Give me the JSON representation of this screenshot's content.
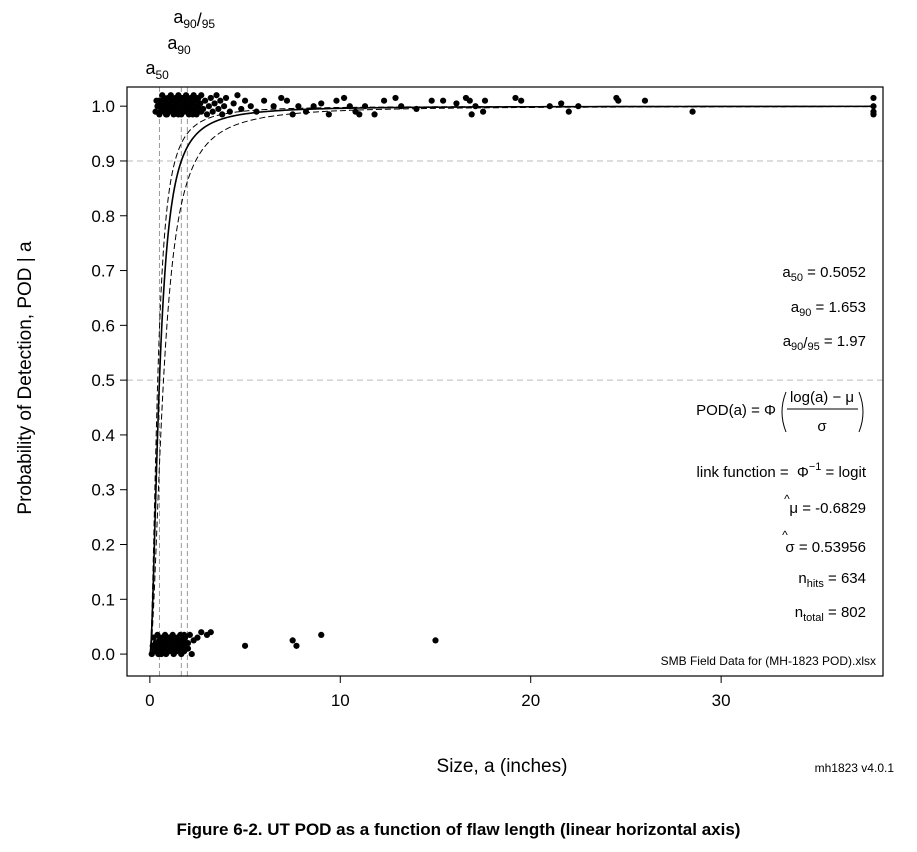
{
  "caption": "Figure 6-2. UT POD as a function of flaw length (linear horizontal axis)",
  "chart_data": {
    "type": "scatter",
    "xlabel": "Size, a  (inches)",
    "ylabel": "Probability of Detection, POD | a",
    "xlim": [
      -1.2,
      38.5
    ],
    "ylim": [
      -0.04,
      1.035
    ],
    "x_ticks": [
      0,
      10,
      20,
      30
    ],
    "y_ticks": [
      0.0,
      0.1,
      0.2,
      0.3,
      0.4,
      0.5,
      0.6,
      0.7,
      0.8,
      0.9,
      1.0
    ],
    "y_tick_labels": [
      "0.0",
      "0.1",
      "0.2",
      "0.3",
      "0.4",
      "0.5",
      "0.6",
      "0.7",
      "0.8",
      "0.9",
      "1.0"
    ],
    "x_tick_labels": [
      "0",
      "10",
      "20",
      "30"
    ],
    "grid": false,
    "reference_lines": {
      "horizontal": [
        0.5,
        0.9
      ]
    },
    "reference_markers": [
      {
        "base": "a",
        "sub": "50",
        "x": 0.5052
      },
      {
        "base": "a",
        "sub": "90",
        "x": 1.653
      },
      {
        "base": "a",
        "sub": "90",
        "mid": "/",
        "sub2": "95",
        "x": 1.97
      }
    ],
    "model": {
      "mu": -0.6829,
      "sigma": 0.53956
    },
    "stats": [
      {
        "base": "a",
        "sub": "50",
        "rest": " = 0.5052"
      },
      {
        "base": "a",
        "sub": "90",
        "rest": " = 1.653"
      },
      {
        "base": "a",
        "sub": "90",
        "mid": "/",
        "sub2": "95",
        "rest": " = 1.97"
      }
    ],
    "formula": {
      "lhs": "POD(a) = Φ",
      "numerator": "log(a) − μ",
      "denominator": "σ"
    },
    "link_function": {
      "label": "link function = ",
      "phi": "Φ",
      "sup": "−1",
      "rest": " = logit"
    },
    "estimates": [
      {
        "symbol": "μ",
        "hat": "^",
        "rest": " = -0.6829"
      },
      {
        "symbol": "σ",
        "hat": "^",
        "rest": " = 0.53956"
      }
    ],
    "counts": [
      {
        "base": "n",
        "sub": "hits",
        "rest": " = 634"
      },
      {
        "base": "n",
        "sub": "total",
        "rest": " = 802"
      }
    ],
    "data_source": "SMB Field Data for (MH-1823 POD).xlsx",
    "version": "mh1823 v4.0.1",
    "hits": [
      [
        0.3,
        0.99
      ],
      [
        0.4,
        1.0
      ],
      [
        0.5,
        1.01
      ],
      [
        0.55,
        0.99
      ],
      [
        0.6,
        1.0
      ],
      [
        0.65,
        1.02
      ],
      [
        0.7,
        0.995
      ],
      [
        0.75,
        1.005
      ],
      [
        0.8,
        1.01
      ],
      [
        0.85,
        0.985
      ],
      [
        0.9,
        1.0
      ],
      [
        0.95,
        1.015
      ],
      [
        1.0,
        0.99
      ],
      [
        1.05,
        1.005
      ],
      [
        1.1,
        1.02
      ],
      [
        1.15,
        0.995
      ],
      [
        1.2,
        1.01
      ],
      [
        1.25,
        0.985
      ],
      [
        1.3,
        1.0
      ],
      [
        1.35,
        1.015
      ],
      [
        1.4,
        0.99
      ],
      [
        1.45,
        1.005
      ],
      [
        1.5,
        1.02
      ],
      [
        1.55,
        0.995
      ],
      [
        1.6,
        1.01
      ],
      [
        1.65,
        0.985
      ],
      [
        1.7,
        1.0
      ],
      [
        1.75,
        1.015
      ],
      [
        1.8,
        0.99
      ],
      [
        1.85,
        1.005
      ],
      [
        1.9,
        1.02
      ],
      [
        1.95,
        0.995
      ],
      [
        2.0,
        1.01
      ],
      [
        2.05,
        0.985
      ],
      [
        2.1,
        1.0
      ],
      [
        2.15,
        1.015
      ],
      [
        2.2,
        0.99
      ],
      [
        2.25,
        1.005
      ],
      [
        2.3,
        1.02
      ],
      [
        2.35,
        0.995
      ],
      [
        2.4,
        1.01
      ],
      [
        2.45,
        0.985
      ],
      [
        2.5,
        1.0
      ],
      [
        2.55,
        1.015
      ],
      [
        2.6,
        0.99
      ],
      [
        2.65,
        1.005
      ],
      [
        2.7,
        1.02
      ],
      [
        2.8,
        0.995
      ],
      [
        2.9,
        1.01
      ],
      [
        3.0,
        0.985
      ],
      [
        3.1,
        1.0
      ],
      [
        3.2,
        1.015
      ],
      [
        3.3,
        0.99
      ],
      [
        3.4,
        1.005
      ],
      [
        3.5,
        1.02
      ],
      [
        3.6,
        0.995
      ],
      [
        3.7,
        1.01
      ],
      [
        3.8,
        0.985
      ],
      [
        3.9,
        1.0
      ],
      [
        4.0,
        1.015
      ],
      [
        4.2,
        0.99
      ],
      [
        4.4,
        1.005
      ],
      [
        4.6,
        1.02
      ],
      [
        4.8,
        0.995
      ],
      [
        5.0,
        1.01
      ],
      [
        5.3,
        1.0
      ],
      [
        5.6,
        0.99
      ],
      [
        6.0,
        1.01
      ],
      [
        6.5,
        1.0
      ],
      [
        6.9,
        1.015
      ],
      [
        7.2,
        1.01
      ],
      [
        7.5,
        0.985
      ],
      [
        7.8,
        1.0
      ],
      [
        8.2,
        0.99
      ],
      [
        8.6,
        1.0
      ],
      [
        9.0,
        1.005
      ],
      [
        9.4,
        0.985
      ],
      [
        9.8,
        1.01
      ],
      [
        10.2,
        1.015
      ],
      [
        10.5,
        1.0
      ],
      [
        10.8,
        0.99
      ],
      [
        11.0,
        0.985
      ],
      [
        11.3,
        1.0
      ],
      [
        11.8,
        0.985
      ],
      [
        12.3,
        1.01
      ],
      [
        12.9,
        1.015
      ],
      [
        13.2,
        1.0
      ],
      [
        14.0,
        0.995
      ],
      [
        14.8,
        1.01
      ],
      [
        15.4,
        1.01
      ],
      [
        16.1,
        1.005
      ],
      [
        16.6,
        1.015
      ],
      [
        16.8,
        1.01
      ],
      [
        16.9,
        0.985
      ],
      [
        17.1,
        1.0
      ],
      [
        17.5,
        0.99
      ],
      [
        17.6,
        1.01
      ],
      [
        19.2,
        1.015
      ],
      [
        19.5,
        1.01
      ],
      [
        21.0,
        1.0
      ],
      [
        21.6,
        1.005
      ],
      [
        22.0,
        0.99
      ],
      [
        22.5,
        1.0
      ],
      [
        24.5,
        1.015
      ],
      [
        24.6,
        1.01
      ],
      [
        26.0,
        1.01
      ],
      [
        28.5,
        0.99
      ],
      [
        38.0,
        1.015
      ],
      [
        38.0,
        1.0
      ],
      [
        38.0,
        0.99
      ],
      [
        38.0,
        0.985
      ],
      [
        0.45,
        1.0
      ],
      [
        0.6,
        0.99
      ],
      [
        0.75,
        1.015
      ],
      [
        0.9,
        0.985
      ],
      [
        1.05,
        1.0
      ],
      [
        1.2,
        0.995
      ],
      [
        1.35,
        1.01
      ],
      [
        1.5,
        0.985
      ],
      [
        1.65,
        1.015
      ],
      [
        1.8,
        1.0
      ],
      [
        1.95,
        0.99
      ],
      [
        2.1,
        1.01
      ],
      [
        2.25,
        0.985
      ],
      [
        2.4,
        1.015
      ],
      [
        2.55,
        1.0
      ],
      [
        2.7,
        0.99
      ],
      [
        0.35,
        1.01
      ],
      [
        0.5,
        0.985
      ],
      [
        0.65,
        1.005
      ],
      [
        0.8,
        0.995
      ]
    ],
    "misses": [
      [
        0.1,
        0.0
      ],
      [
        0.15,
        0.015
      ],
      [
        0.2,
        0.03
      ],
      [
        0.25,
        0.005
      ],
      [
        0.3,
        0.02
      ],
      [
        0.35,
        0.01
      ],
      [
        0.4,
        0.035
      ],
      [
        0.45,
        0.0
      ],
      [
        0.5,
        0.025
      ],
      [
        0.55,
        0.015
      ],
      [
        0.6,
        0.005
      ],
      [
        0.65,
        0.03
      ],
      [
        0.7,
        0.02
      ],
      [
        0.75,
        0.01
      ],
      [
        0.8,
        0.035
      ],
      [
        0.85,
        0.0
      ],
      [
        0.9,
        0.025
      ],
      [
        0.95,
        0.015
      ],
      [
        1.0,
        0.005
      ],
      [
        1.05,
        0.03
      ],
      [
        1.1,
        0.02
      ],
      [
        1.15,
        0.01
      ],
      [
        1.2,
        0.035
      ],
      [
        1.25,
        0.0
      ],
      [
        1.3,
        0.025
      ],
      [
        1.35,
        0.015
      ],
      [
        1.4,
        0.005
      ],
      [
        1.45,
        0.03
      ],
      [
        1.5,
        0.02
      ],
      [
        1.55,
        0.01
      ],
      [
        1.6,
        0.035
      ],
      [
        1.65,
        0.0
      ],
      [
        1.7,
        0.025
      ],
      [
        1.75,
        0.015
      ],
      [
        1.8,
        0.005
      ],
      [
        1.85,
        0.03
      ],
      [
        1.9,
        0.02
      ],
      [
        2.0,
        0.01
      ],
      [
        2.1,
        0.035
      ],
      [
        2.2,
        0.0
      ],
      [
        2.3,
        0.025
      ],
      [
        2.5,
        0.03
      ],
      [
        2.7,
        0.04
      ],
      [
        3.0,
        0.035
      ],
      [
        3.2,
        0.04
      ],
      [
        5.0,
        0.015
      ],
      [
        7.5,
        0.025
      ],
      [
        7.7,
        0.015
      ],
      [
        9.0,
        0.035
      ],
      [
        15.0,
        0.025
      ],
      [
        0.2,
        0.01
      ],
      [
        0.4,
        0.02
      ],
      [
        0.6,
        0.0
      ],
      [
        0.8,
        0.015
      ],
      [
        1.0,
        0.03
      ],
      [
        1.2,
        0.005
      ],
      [
        1.4,
        0.025
      ],
      [
        1.6,
        0.01
      ],
      [
        1.8,
        0.035
      ],
      [
        2.0,
        0.02
      ]
    ]
  }
}
